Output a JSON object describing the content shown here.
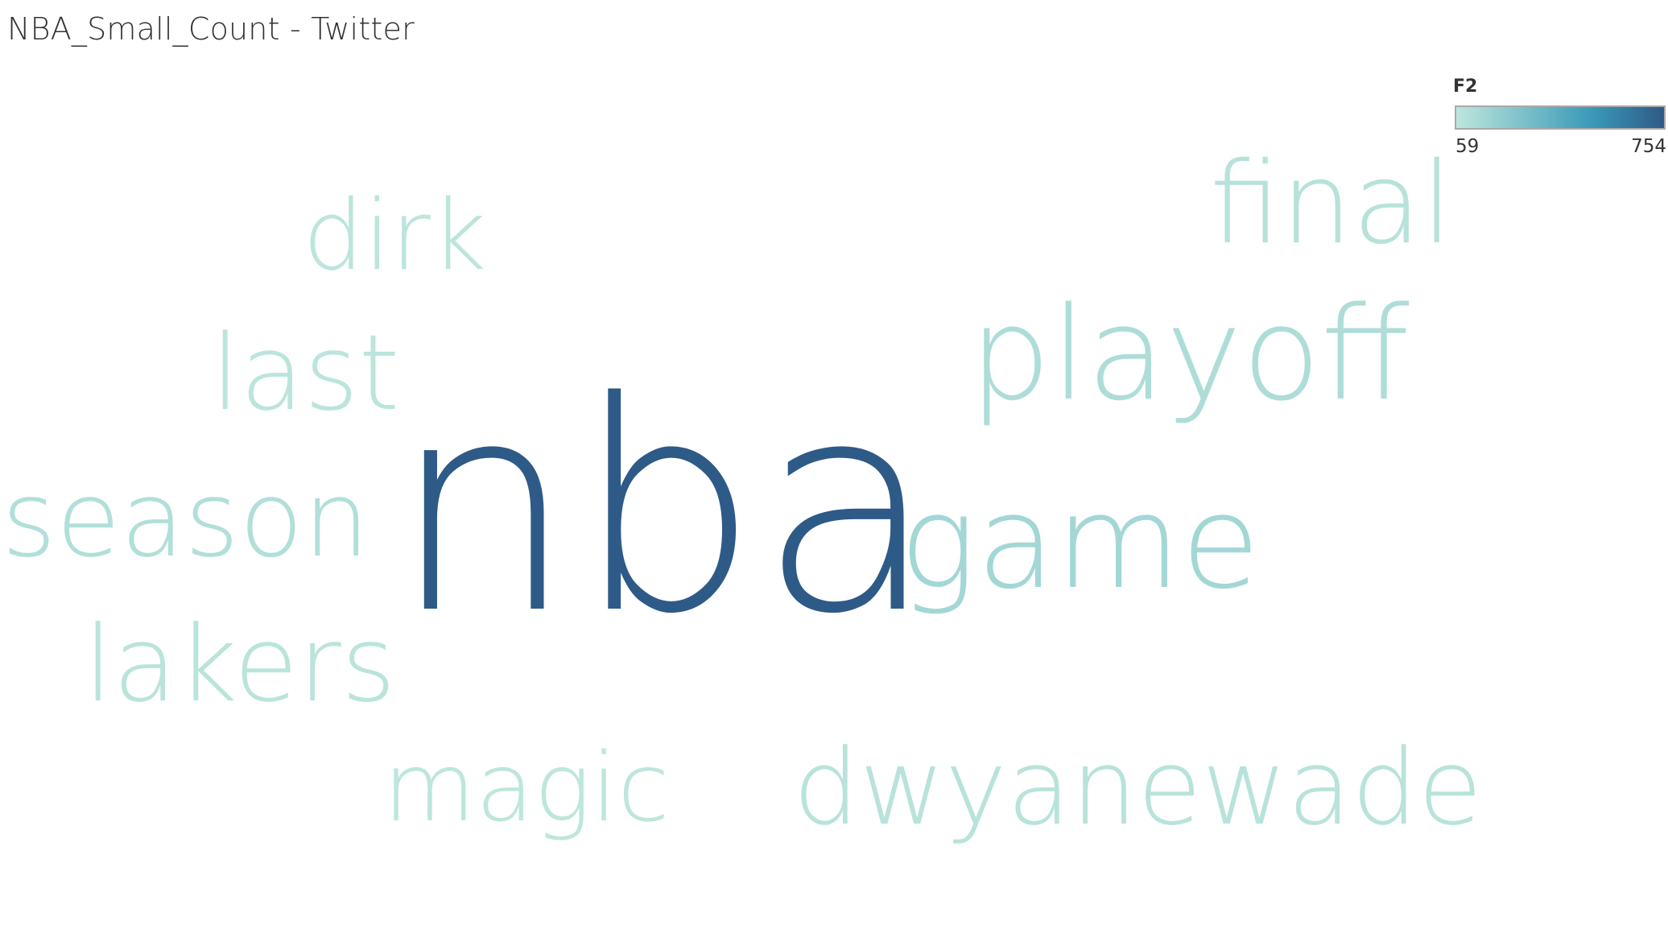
{
  "title": "NBA_Small_Count - Twitter",
  "legend": {
    "title": "F2",
    "min_label": "59",
    "max_label": "754",
    "color_min": "#bde6dc",
    "color_mid": "#3a9ab8",
    "color_max": "#2e5a87"
  },
  "chart_data": {
    "type": "word_cloud",
    "measure": "F2",
    "range": [
      59,
      754
    ],
    "words": [
      {
        "text": "nba",
        "value": 754
      },
      {
        "text": "game",
        "value": 150
      },
      {
        "text": "playoff",
        "value": 110
      },
      {
        "text": "season",
        "value": 100
      },
      {
        "text": "final",
        "value": 80
      },
      {
        "text": "dwyanewade",
        "value": 75
      },
      {
        "text": "lakers",
        "value": 70
      },
      {
        "text": "last",
        "value": 65
      },
      {
        "text": "dirk",
        "value": 62
      },
      {
        "text": "magic",
        "value": 59
      }
    ]
  }
}
